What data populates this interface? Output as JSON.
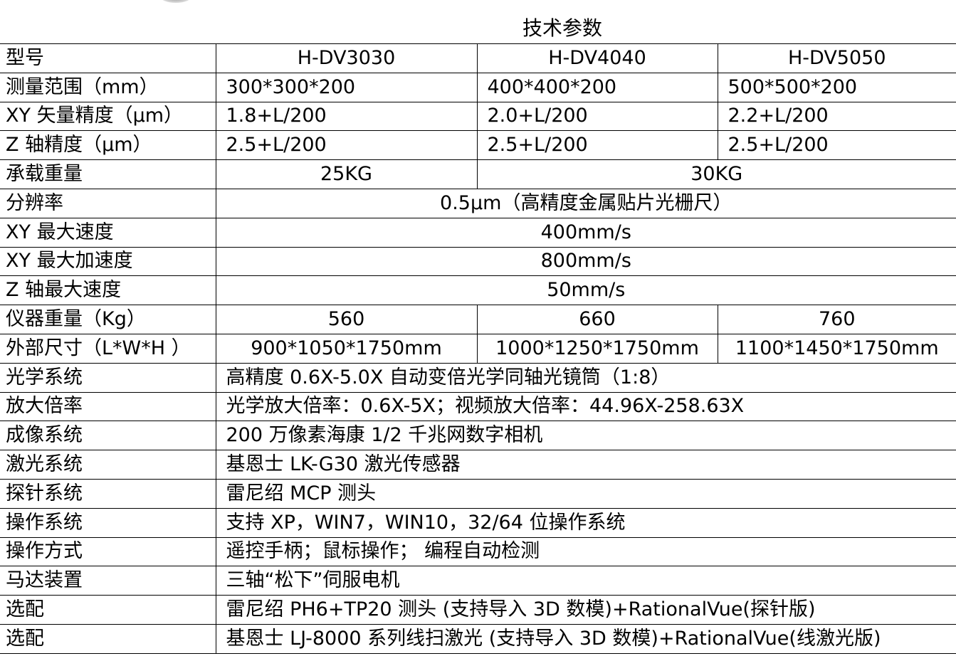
{
  "title": "技术参数",
  "rows": [
    {
      "label": "型号",
      "cells": [
        "H-DV3030",
        "H-DV4040",
        "H-DV5050"
      ]
    },
    {
      "label": "测量范围（mm）",
      "cells": [
        "300*300*200",
        "400*400*200",
        "500*500*200"
      ]
    },
    {
      "label": "XY 矢量精度（μm）",
      "cells": [
        "1.8+L/200",
        "2.0+L/200",
        "2.2+L/200"
      ]
    },
    {
      "label": "Z 轴精度（μm）",
      "cells": [
        "2.5+L/200",
        "2.5+L/200",
        "2.5+L/200"
      ]
    },
    {
      "label": "承载重量",
      "cells": [
        "25KG",
        "30KG"
      ]
    },
    {
      "label": "分辨率",
      "cells": [
        "0.5μm（高精度金属贴片光栅尺）"
      ]
    },
    {
      "label": "XY 最大速度",
      "cells": [
        "400mm/s"
      ]
    },
    {
      "label": "XY 最大加速度",
      "cells": [
        "800mm/s"
      ]
    },
    {
      "label": "Z 轴最大速度",
      "cells": [
        "50mm/s"
      ]
    },
    {
      "label": "仪器重量（Kg）",
      "cells": [
        "560",
        "660",
        "760"
      ]
    },
    {
      "label": "外部尺寸（L*W*H ）",
      "cells": [
        "900*1050*1750mm",
        "1000*1250*1750mm",
        "1100*1450*1750mm"
      ]
    },
    {
      "label": "光学系统",
      "cells": [
        "高精度 0.6X-5.0X 自动变倍光学同轴光镜筒（1:8）"
      ]
    },
    {
      "label": "放大倍率",
      "cells": [
        "光学放大倍率：0.6X-5X；视频放大倍率：44.96X-258.63X"
      ]
    },
    {
      "label": "成像系统",
      "cells": [
        "200 万像素海康 1/2 千兆网数字相机"
      ]
    },
    {
      "label": "激光系统",
      "cells": [
        "基恩士 LK-G30 激光传感器"
      ]
    },
    {
      "label": "探针系统",
      "cells": [
        "雷尼绍 MCP 测头"
      ]
    },
    {
      "label": "操作系统",
      "cells": [
        "支持 XP，WIN7，WIN10，32/64 位操作系统"
      ]
    },
    {
      "label": "操作方式",
      "cells": [
        "遥控手柄；鼠标操作； 编程自动检测"
      ]
    },
    {
      "label": "马达装置",
      "cells": [
        "三轴“松下”伺服电机"
      ]
    },
    {
      "label": "选配",
      "cells": [
        "雷尼绍 PH6+TP20 测头 (支持导入 3D 数模)+RationalVue(探针版)"
      ]
    },
    {
      "label": "选配",
      "cells": [
        "基恩士 LJ-8000 系列线扫激光 (支持导入 3D 数模)+RationalVue(线激光版)"
      ]
    }
  ]
}
